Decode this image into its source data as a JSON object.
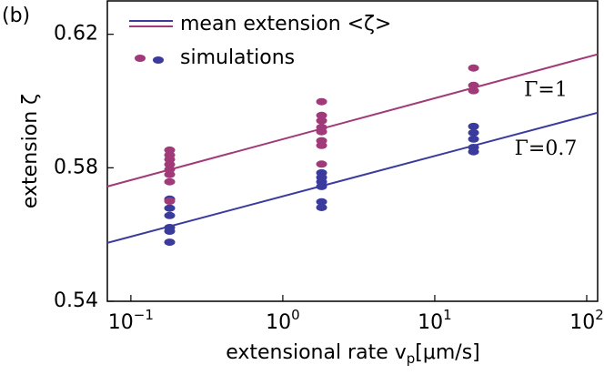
{
  "chart_data": {
    "type": "scatter",
    "panel_label": "(b)",
    "xlabel": {
      "text": "extensional rate v",
      "subscript": "p",
      "unit": "[μm/s]"
    },
    "ylabel": "extension ζ",
    "log_x": true,
    "xlim": [
      0.07,
      118
    ],
    "ylim": [
      0.54,
      0.63
    ],
    "xticks": [
      {
        "value": 0.1,
        "label": "10",
        "exponent": "−1"
      },
      {
        "value": 1,
        "label": "10",
        "exponent": "0"
      },
      {
        "value": 10,
        "label": "10",
        "exponent": "1"
      },
      {
        "value": 100,
        "label": "10",
        "exponent": "2"
      }
    ],
    "yticks": [
      0.54,
      0.58,
      0.62
    ],
    "legend": {
      "line": "mean extension <ζ>",
      "points": "simulations",
      "line_colors": [
        "#3b3b9e",
        "#a03a78"
      ],
      "point_colors": [
        "#a03a78",
        "#3b3b9e"
      ]
    },
    "lines": [
      {
        "label": "Γ=1",
        "color": "#a03a78",
        "x": [
          0.07,
          118
        ],
        "values": [
          0.5744,
          0.614
        ]
      },
      {
        "label": "Γ=0.7",
        "color": "#3b3b9e",
        "x": [
          0.07,
          118
        ],
        "values": [
          0.5575,
          0.5965
        ]
      }
    ],
    "point_groups": [
      {
        "color": "#3b3b9e",
        "x": [
          0.18,
          0.18,
          0.18,
          0.18,
          0.18,
          0.18,
          1.8,
          1.8,
          1.8,
          1.8,
          1.8,
          1.8,
          18,
          18,
          18,
          18,
          18
        ],
        "values": [
          0.5706,
          0.5679,
          0.5657,
          0.5621,
          0.561,
          0.5577,
          0.5785,
          0.5771,
          0.5758,
          0.5744,
          0.5698,
          0.5681,
          0.5924,
          0.5905,
          0.5886,
          0.5861,
          0.5848
        ]
      },
      {
        "color": "#a03a78",
        "x": [
          0.18,
          0.18,
          0.18,
          0.18,
          0.18,
          0.18,
          0.18,
          0.18,
          1.8,
          1.8,
          1.8,
          1.8,
          1.8,
          1.8,
          1.8,
          1.8,
          18,
          18,
          18
        ],
        "values": [
          0.5853,
          0.5838,
          0.5825,
          0.581,
          0.5795,
          0.578,
          0.5758,
          0.57,
          0.5998,
          0.5957,
          0.5941,
          0.5921,
          0.5908,
          0.5881,
          0.5867,
          0.5811,
          0.6099,
          0.6047,
          0.6031
        ]
      }
    ]
  }
}
